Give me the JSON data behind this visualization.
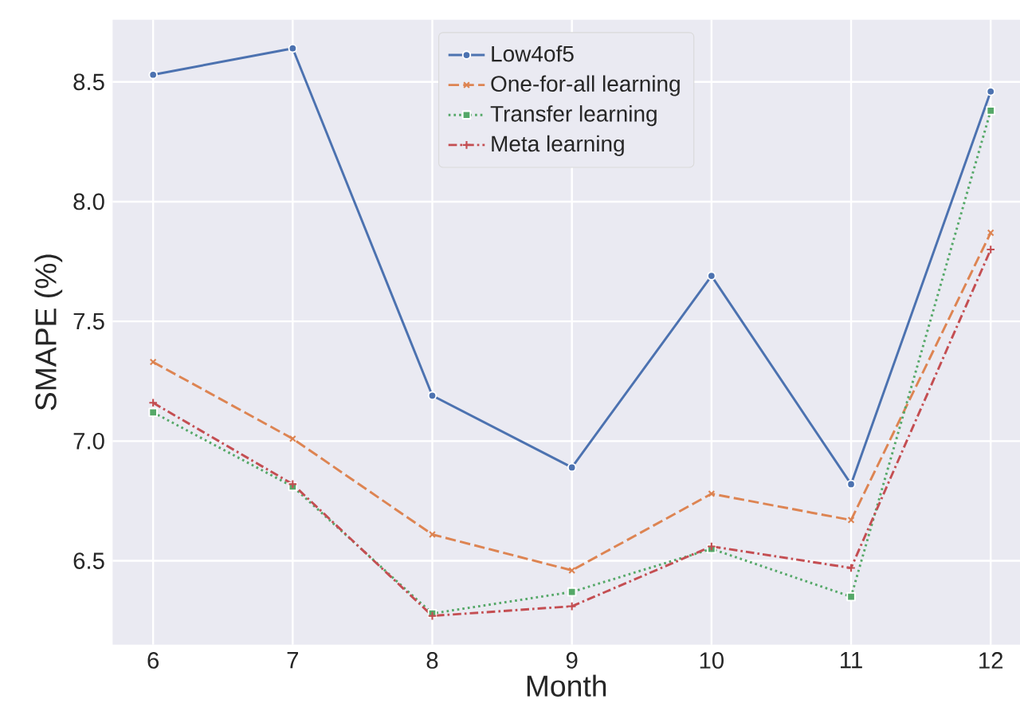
{
  "chart_data": {
    "type": "line",
    "xlabel": "Month",
    "ylabel": "SMAPE (%)",
    "x": [
      6,
      7,
      8,
      9,
      10,
      11,
      12
    ],
    "series": [
      {
        "name": "Low4of5",
        "color": "#4c72b0",
        "line_style": "solid",
        "marker": "circle",
        "values": [
          8.53,
          8.64,
          7.19,
          6.89,
          7.69,
          6.82,
          8.46
        ]
      },
      {
        "name": "One-for-all learning",
        "color": "#dd8452",
        "line_style": "dashed",
        "marker": "cross",
        "values": [
          7.33,
          7.01,
          6.61,
          6.46,
          6.78,
          6.67,
          7.87
        ]
      },
      {
        "name": "Transfer learning",
        "color": "#55a868",
        "line_style": "dotted",
        "marker": "square",
        "values": [
          7.12,
          6.81,
          6.28,
          6.37,
          6.55,
          6.35,
          8.38
        ]
      },
      {
        "name": "Meta learning",
        "color": "#c44e52",
        "line_style": "dashdot",
        "marker": "plus",
        "values": [
          7.16,
          6.82,
          6.27,
          6.31,
          6.56,
          6.47,
          7.8
        ]
      }
    ],
    "xlim": [
      5.71,
      12.21
    ],
    "ylim": [
      6.15,
      8.76
    ],
    "xticks": [
      6,
      7,
      8,
      9,
      10,
      11,
      12
    ],
    "yticks": [
      {
        "value": 6.5,
        "label": "6.5"
      },
      {
        "value": 7.0,
        "label": "7.0"
      },
      {
        "value": 7.5,
        "label": "7.5"
      },
      {
        "value": 8.0,
        "label": "8.0"
      },
      {
        "value": 8.5,
        "label": "8.5"
      }
    ],
    "grid": true,
    "legend": "top"
  }
}
